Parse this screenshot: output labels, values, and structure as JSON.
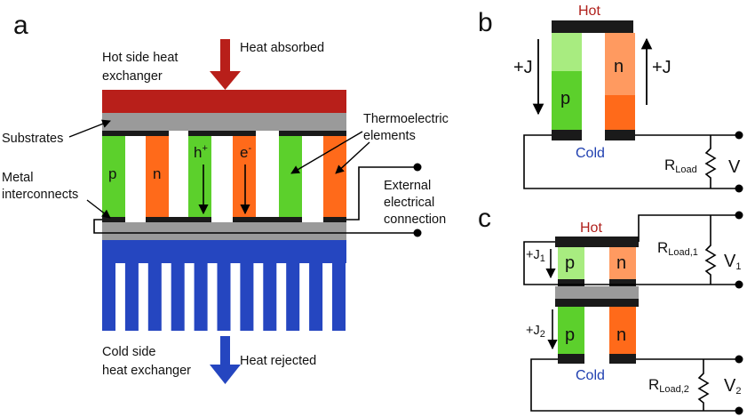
{
  "panels": {
    "a": "a",
    "b": "b",
    "c": "c"
  },
  "panel_a": {
    "hot_exchanger": [
      "Hot side heat",
      "exchanger"
    ],
    "heat_absorbed": "Heat absorbed",
    "substrates": "Substrates",
    "metal_interconnects": [
      "Metal",
      "interconnects"
    ],
    "thermoelectric_elements": [
      "Thermoelectric",
      "elements"
    ],
    "external_connection": [
      "External",
      "electrical",
      "connection"
    ],
    "cold_exchanger": [
      "Cold side",
      "heat exchanger"
    ],
    "heat_rejected": "Heat rejected",
    "legs": [
      "p",
      "n",
      "h",
      "e",
      "p",
      "n"
    ],
    "hole_sup": "+",
    "electron_sup": "-"
  },
  "panel_b": {
    "hot": "Hot",
    "cold": "Cold",
    "p": "p",
    "n": "n",
    "current_left": "+J",
    "current_right": "+J",
    "r_main": "R",
    "r_sub": "Load",
    "voltage": "V"
  },
  "panel_c": {
    "hot": "Hot",
    "cold": "Cold",
    "top": {
      "p": "p",
      "n": "n",
      "current": "+J",
      "current_sub": "1",
      "r_main": "R",
      "r_sub": "Load,1",
      "v_main": "V",
      "v_sub": "1"
    },
    "bottom": {
      "p": "p",
      "n": "n",
      "current": "+J",
      "current_sub": "2",
      "r_main": "R",
      "r_sub": "Load,2",
      "v_main": "V",
      "v_sub": "2"
    }
  },
  "colors": {
    "hot_exchanger": "#b81f1a",
    "substrate": "#9a9a9a",
    "metal": "#1a1a1a",
    "p_type": "#5cd02c",
    "p_type_light": "#a8ec80",
    "n_type": "#ff6a1a",
    "n_type_light": "#ff9a60",
    "cold_exchanger": "#2546c0",
    "hot_text": "#b0201c",
    "cold_text": "#1f3fb0"
  }
}
